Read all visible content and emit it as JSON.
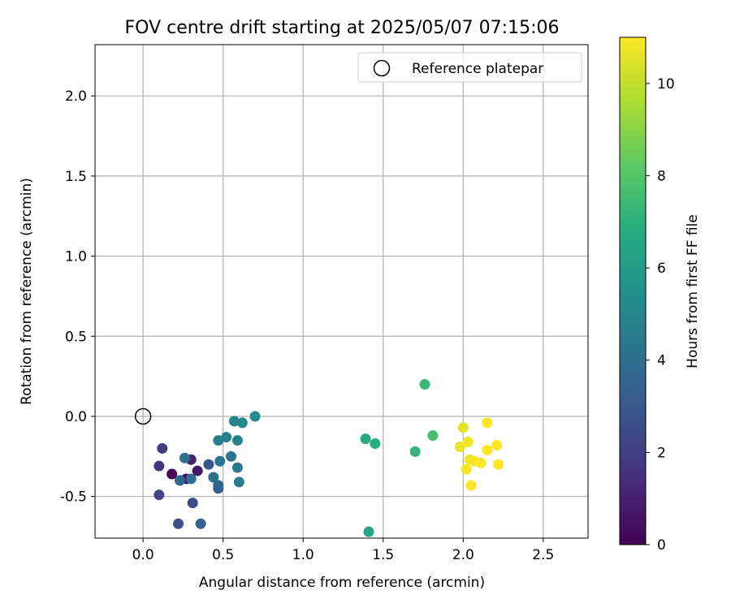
{
  "chart_data": {
    "type": "scatter",
    "title": "FOV centre drift starting at 2025/05/07 07:15:06",
    "xlabel": "Angular distance from reference (arcmin)",
    "ylabel": "Rotation from reference (arcmin)",
    "xlim": [
      -0.3,
      2.78
    ],
    "ylim": [
      -0.76,
      2.32
    ],
    "xticks": [
      "0.0",
      "0.5",
      "1.0",
      "1.5",
      "2.0",
      "2.5"
    ],
    "yticks": [
      "-0.5",
      "0.0",
      "0.5",
      "1.0",
      "1.5",
      "2.0"
    ],
    "grid": true,
    "legend": {
      "position": "top-right",
      "entries": [
        "Reference platepar"
      ]
    },
    "colorbar": {
      "label": "Hours from first FF file",
      "range": [
        0,
        11
      ],
      "ticks": [
        "0",
        "2",
        "4",
        "6",
        "8",
        "10"
      ],
      "colormap": "viridis"
    },
    "reference_point": {
      "x": 0.0,
      "y": 0.0
    },
    "points": [
      {
        "x": 0.18,
        "y": -0.36,
        "h": 0.2
      },
      {
        "x": 0.27,
        "y": -0.39,
        "h": 0.5
      },
      {
        "x": 0.34,
        "y": -0.34,
        "h": 0.8
      },
      {
        "x": 0.3,
        "y": -0.27,
        "h": 1.1
      },
      {
        "x": 0.1,
        "y": -0.31,
        "h": 1.7
      },
      {
        "x": 0.12,
        "y": -0.2,
        "h": 2.0
      },
      {
        "x": 0.1,
        "y": -0.49,
        "h": 2.3
      },
      {
        "x": 0.31,
        "y": -0.54,
        "h": 2.5
      },
      {
        "x": 0.22,
        "y": -0.67,
        "h": 2.7
      },
      {
        "x": 0.41,
        "y": -0.3,
        "h": 3.0
      },
      {
        "x": 0.47,
        "y": -0.45,
        "h": 3.2
      },
      {
        "x": 0.36,
        "y": -0.67,
        "h": 3.5
      },
      {
        "x": 0.47,
        "y": -0.43,
        "h": 3.6
      },
      {
        "x": 0.23,
        "y": -0.4,
        "h": 3.8
      },
      {
        "x": 0.3,
        "y": -0.39,
        "h": 4.0
      },
      {
        "x": 0.44,
        "y": -0.38,
        "h": 4.1
      },
      {
        "x": 0.26,
        "y": -0.26,
        "h": 4.2
      },
      {
        "x": 0.48,
        "y": -0.28,
        "h": 4.3
      },
      {
        "x": 0.55,
        "y": -0.25,
        "h": 4.4
      },
      {
        "x": 0.59,
        "y": -0.32,
        "h": 4.5
      },
      {
        "x": 0.6,
        "y": -0.41,
        "h": 4.6
      },
      {
        "x": 0.47,
        "y": -0.15,
        "h": 4.7
      },
      {
        "x": 0.52,
        "y": -0.13,
        "h": 4.8
      },
      {
        "x": 0.59,
        "y": -0.15,
        "h": 4.9
      },
      {
        "x": 0.57,
        "y": -0.03,
        "h": 5.0
      },
      {
        "x": 0.62,
        "y": -0.04,
        "h": 5.1
      },
      {
        "x": 0.7,
        "y": 0.0,
        "h": 5.3
      },
      {
        "x": 1.41,
        "y": -0.72,
        "h": 6.5
      },
      {
        "x": 1.39,
        "y": -0.14,
        "h": 6.7
      },
      {
        "x": 1.45,
        "y": -0.17,
        "h": 6.9
      },
      {
        "x": 1.7,
        "y": -0.22,
        "h": 7.2
      },
      {
        "x": 1.76,
        "y": 0.2,
        "h": 7.4
      },
      {
        "x": 1.81,
        "y": -0.12,
        "h": 7.7
      },
      {
        "x": 2.0,
        "y": -0.07,
        "h": 10.6
      },
      {
        "x": 1.98,
        "y": -0.19,
        "h": 10.7
      },
      {
        "x": 2.03,
        "y": -0.16,
        "h": 10.8
      },
      {
        "x": 2.04,
        "y": -0.27,
        "h": 10.8
      },
      {
        "x": 2.07,
        "y": -0.28,
        "h": 10.9
      },
      {
        "x": 2.02,
        "y": -0.33,
        "h": 10.9
      },
      {
        "x": 2.05,
        "y": -0.43,
        "h": 11.0
      },
      {
        "x": 2.11,
        "y": -0.29,
        "h": 11.0
      },
      {
        "x": 2.15,
        "y": -0.21,
        "h": 11.0
      },
      {
        "x": 2.15,
        "y": -0.04,
        "h": 11.0
      },
      {
        "x": 2.21,
        "y": -0.18,
        "h": 11.0
      },
      {
        "x": 2.22,
        "y": -0.3,
        "h": 11.0
      }
    ]
  }
}
